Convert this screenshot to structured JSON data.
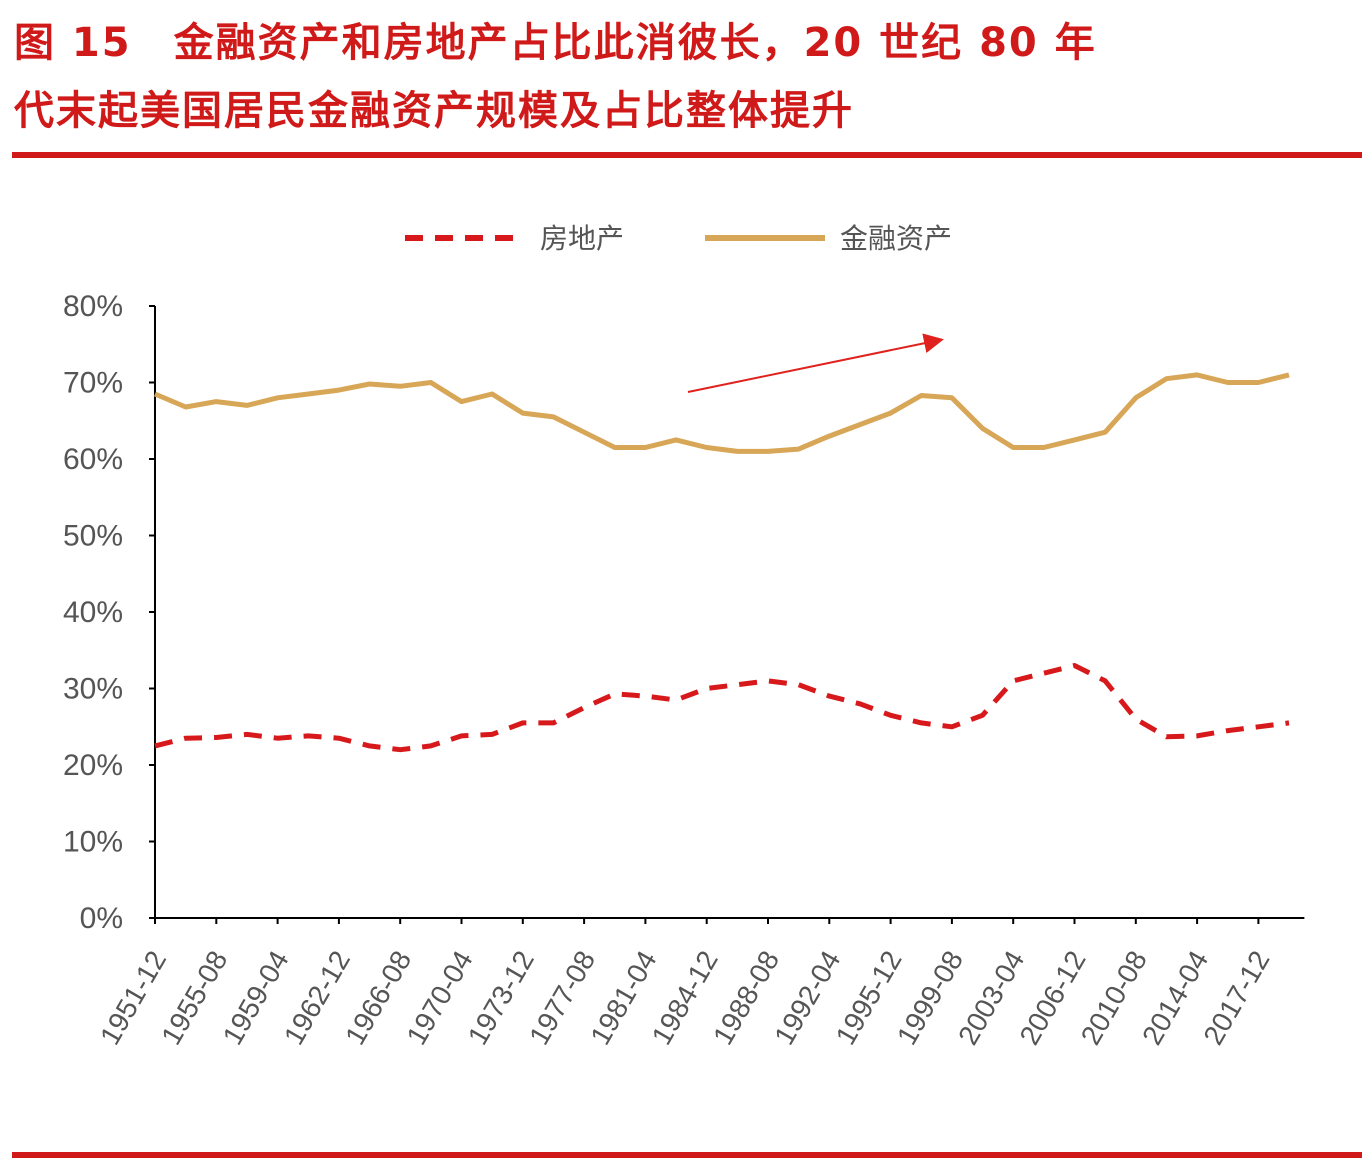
{
  "title_line1": "图 15　金融资产和房地产占比此消彼长，20 世纪 80 年",
  "title_line2": "代末起美国居民金融资产规模及占比整体提升",
  "chart_data": {
    "type": "line",
    "categories": [
      "1951-12",
      null,
      "1955-08",
      null,
      "1959-04",
      null,
      "1962-12",
      null,
      "1966-08",
      null,
      "1970-04",
      null,
      "1973-12",
      null,
      "1977-08",
      null,
      "1981-04",
      null,
      "1984-12",
      null,
      "1988-08",
      null,
      "1992-04",
      null,
      "1995-12",
      null,
      "1999-08",
      null,
      "2003-04",
      null,
      "2006-12",
      null,
      "2010-08",
      null,
      "2014-04",
      null,
      "2017-12",
      null
    ],
    "series": [
      {
        "name": "房地产",
        "color": "#d7191c",
        "dash": true,
        "values": [
          22.5,
          23.5,
          23.6,
          24,
          23.5,
          23.8,
          23.5,
          22.5,
          22,
          22.5,
          23.8,
          24,
          25.5,
          25.5,
          27.5,
          29.3,
          29,
          28.5,
          30,
          30.5,
          31,
          30.5,
          29,
          28,
          26.5,
          25.5,
          25,
          26.5,
          31,
          32,
          33,
          31,
          26,
          23.7,
          23.8,
          24.5,
          25,
          25.5
        ]
      },
      {
        "name": "金融资产",
        "color": "#d8a657",
        "dash": false,
        "values": [
          68.5,
          66.8,
          67.5,
          67,
          68,
          68.5,
          69,
          69.8,
          69.5,
          70,
          67.5,
          68.5,
          66,
          65.5,
          63.5,
          61.5,
          61.5,
          62.5,
          61.5,
          61,
          61,
          61.3,
          63,
          64.5,
          66,
          68.3,
          68,
          64,
          61.5,
          61.5,
          62.5,
          63.5,
          68,
          70.5,
          71,
          70,
          70,
          71
        ]
      }
    ],
    "ylim": [
      0,
      80
    ],
    "yticks": [
      {
        "value": 0,
        "label": "0%"
      },
      {
        "value": 10,
        "label": "10%"
      },
      {
        "value": 20,
        "label": "20%"
      },
      {
        "value": 30,
        "label": "30%"
      },
      {
        "value": 40,
        "label": "40%"
      },
      {
        "value": 50,
        "label": "50%"
      },
      {
        "value": 60,
        "label": "60%"
      },
      {
        "value": 70,
        "label": "70%"
      },
      {
        "value": 80,
        "label": "80%"
      }
    ]
  }
}
